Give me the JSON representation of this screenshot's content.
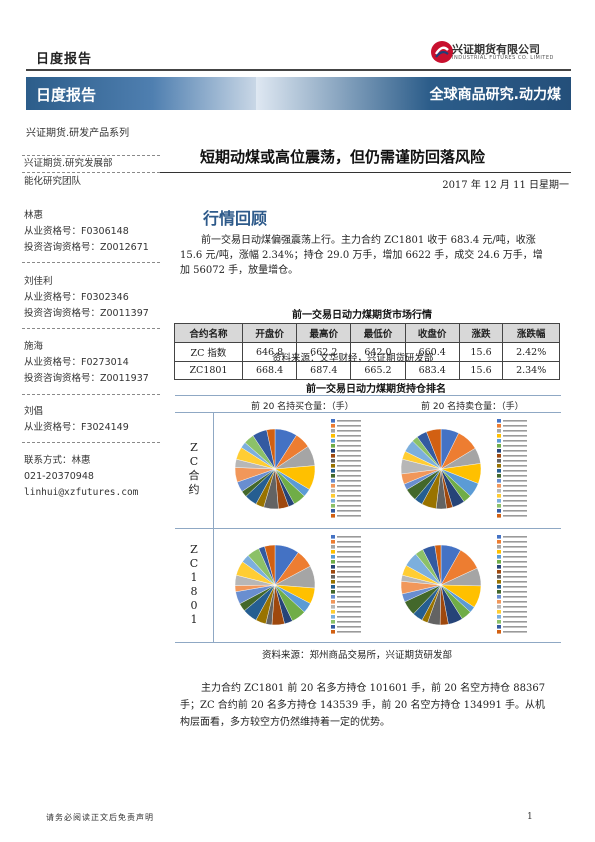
{
  "header": {
    "top_label": "日度报告",
    "logo_name": "兴证期货有限公司",
    "logo_en": "INDUSTRIAL FUTURES CO. LIMITED",
    "banner_left": "日度报告",
    "banner_right": "全球商品研究.动力煤"
  },
  "series_label": "兴证期货.研发产品系列",
  "left": {
    "dept": "兴证期货.研究发展部",
    "team": "能化研究团队",
    "analysts": [
      {
        "name": "林惠",
        "cert1": "从业资格号：F0306148",
        "cert2": "投资咨询资格号：Z0012671"
      },
      {
        "name": "刘佳利",
        "cert1": "从业资格号：F0302346",
        "cert2": "投资咨询资格号：Z0011397"
      },
      {
        "name": "施海",
        "cert1": "从业资格号：F0273014",
        "cert2": "投资咨询资格号：Z0011937"
      },
      {
        "name": "刘倡",
        "cert1": "从业资格号：F3024149",
        "cert2": ""
      }
    ],
    "contact_label": "联系方式：林惠",
    "phone": "021-20370948",
    "email": "linhui@xzfutures.com"
  },
  "doc": {
    "title": "短期动煤或高位震荡，但仍需谨防回落风险",
    "date": "2017 年 12 月 11 日星期一",
    "section_heading": "行情回顾",
    "para1": "前一交易日动煤偏强震荡上行。主力合约 ZC1801 收于 683.4 元/吨，收涨 15.6 元/吨，涨幅 2.34%；持仓 29.0 万手，增加 6622 手，成交 24.6 万手，增加 56072 手，放量增仓。",
    "table_title": "前一交易日动力煤期货市场行情",
    "table_headers": [
      "合约名称",
      "开盘价",
      "最高价",
      "最低价",
      "收盘价",
      "涨跌",
      "涨跌幅"
    ],
    "table_rows": [
      [
        "ZC 指数",
        "646.8",
        "662.2",
        "642.0",
        "660.4",
        "15.6",
        "2.42%"
      ],
      [
        "ZC1801",
        "668.4",
        "687.4",
        "665.2",
        "683.4",
        "15.6",
        "2.34%"
      ]
    ],
    "table_source": "资料来源：文华财经，兴证期货研发部",
    "charts_title": "前一交易日动力煤期货持仓排名",
    "chart_head_buy": "前 20 名持买仓量：（手）",
    "chart_head_sell": "前 20 名持卖仓量：（手）",
    "row1_label": "ZC合约",
    "row2_label": "ZC1801",
    "charts_source": "资料来源：郑州商品交易所，兴证期货研发部",
    "para2": "主力合约 ZC1801 前 20 名多方持仓 101601 手，前 20 名空方持仓 88367 手；ZC 合约前 20 名多方持仓 143539 手，前 20 名空方持仓 134991 手。从机构层面看，多方较空方仍然维持着一定的优势。"
  },
  "footer": {
    "disclaimer": "请务必阅读正文后免责声明",
    "page": "1"
  },
  "pie_colors": [
    "#4472c4",
    "#ed7d31",
    "#a5a5a5",
    "#ffc000",
    "#5b9bd5",
    "#70ad47",
    "#264478",
    "#9e480e",
    "#636363",
    "#997300",
    "#255e91",
    "#43682b",
    "#698ed0",
    "#f1975a",
    "#b7b7b7",
    "#ffcd33",
    "#7cafdd",
    "#8cc168",
    "#335aa1",
    "#d26012"
  ]
}
